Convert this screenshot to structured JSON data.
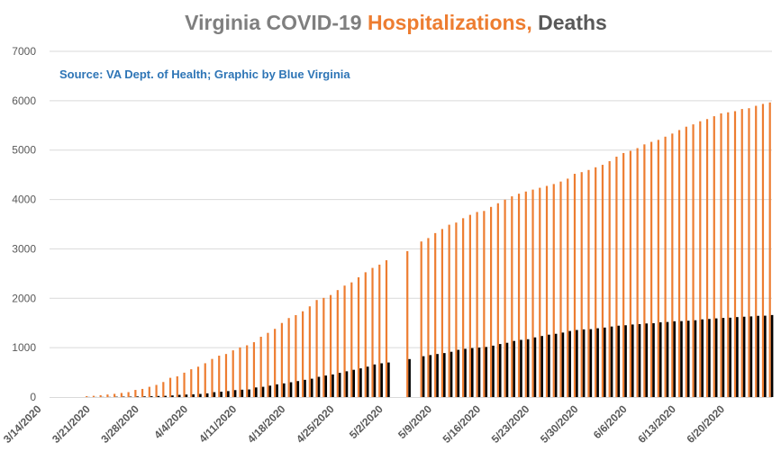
{
  "title": {
    "part1": "Virginia COVID-19 ",
    "part2": "Hospitalizations,",
    "part3": " Deaths"
  },
  "source": "Source: VA Dept. of Health; Graphic by Blue Virginia",
  "colors": {
    "hospitalizations": "#ed7d31",
    "deaths": "#000000",
    "grid": "#d9d9d9",
    "axis_text": "#595959"
  },
  "chart_data": {
    "type": "bar",
    "title": "Virginia COVID-19 Hospitalizations, Deaths",
    "xlabel": "",
    "ylabel": "",
    "ylim": [
      0,
      7000
    ],
    "y_ticks": [
      0,
      1000,
      2000,
      3000,
      4000,
      5000,
      6000,
      7000
    ],
    "x_tick_labels": [
      "3/14/2020",
      "3/21/2020",
      "3/28/2020",
      "4/4/2020",
      "4/11/2020",
      "4/18/2020",
      "4/25/2020",
      "5/2/2020",
      "5/9/2020",
      "5/16/2020",
      "5/23/2020",
      "5/30/2020",
      "6/6/2020",
      "6/13/2020",
      "6/20/2020"
    ],
    "first_date": "3/14/2020",
    "grid": true,
    "legend": "none",
    "series": [
      {
        "values": [
          0,
          0,
          0,
          0,
          0,
          0,
          0,
          19,
          25,
          38,
          52,
          65,
          83,
          100,
          145,
          165,
          208,
          246,
          305,
          390,
          420,
          494,
          563,
          615,
          685,
          772,
          838,
          872,
          946,
          1005,
          1048,
          1111,
          1221,
          1300,
          1381,
          1500,
          1600,
          1659,
          1737,
          1837,
          1965,
          2008,
          2066,
          2166,
          2257,
          2322,
          2425,
          2527,
          2615,
          2681,
          2770,
          null,
          null,
          2955,
          null,
          3150,
          3219,
          3320,
          3402,
          3489,
          3533,
          3621,
          3689,
          3747,
          3768,
          3850,
          3924,
          3997,
          4064,
          4117,
          4161,
          4200,
          4237,
          4275,
          4313,
          4363,
          4422,
          4520,
          4554,
          4598,
          4652,
          4702,
          4776,
          4867,
          4941,
          4985,
          5040,
          5116,
          5167,
          5207,
          5272,
          5335,
          5406,
          5474,
          5521,
          5584,
          5628,
          5686,
          5744,
          5765,
          5788,
          5832,
          5848,
          5897,
          5935,
          5965
        ]
      },
      {
        "values": [
          0,
          0,
          0,
          0,
          0,
          0,
          0,
          2,
          2,
          3,
          3,
          7,
          9,
          9,
          13,
          14,
          17,
          22,
          25,
          33,
          45,
          51,
          55,
          63,
          75,
          99,
          109,
          121,
          141,
          149,
          154,
          195,
          208,
          231,
          258,
          277,
          300,
          324,
          349,
          372,
          410,
          436,
          458,
          490,
          522,
          552,
          581,
          616,
          660,
          684,
          700,
          null,
          null,
          769,
          null,
          827,
          850,
          872,
          891,
          917,
          956,
          977,
          992,
          1002,
          1014,
          1041,
          1074,
          1099,
          1136,
          1158,
          1171,
          1208,
          1236,
          1263,
          1281,
          1306,
          1338,
          1358,
          1370,
          1375,
          1393,
          1407,
          1428,
          1445,
          1454,
          1469,
          1477,
          1490,
          1496,
          1514,
          1520,
          1534,
          1538,
          1546,
          1555,
          1573,
          1582,
          1593,
          1602,
          1607,
          1620,
          1627,
          1633,
          1645,
          1648,
          1661
        ]
      }
    ]
  }
}
